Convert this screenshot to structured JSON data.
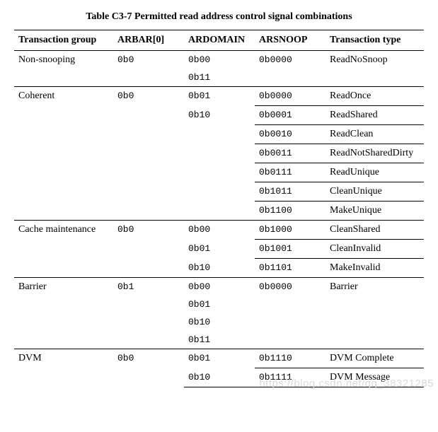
{
  "caption": "Table C3-7 Permitted read address control signal combinations",
  "columns": [
    "Transaction group",
    "ARBAR[0]",
    "ARDOMAIN",
    "ARSNOOP",
    "Transaction type"
  ],
  "groups": [
    {
      "name": "Non-snooping",
      "arbar": "0b0",
      "ardomain": [
        "0b00",
        "0b11"
      ],
      "rows": [
        {
          "arsnoop": "0b0000",
          "type": "ReadNoSnoop"
        }
      ]
    },
    {
      "name": "Coherent",
      "arbar": "0b0",
      "ardomain": [
        "0b01",
        "0b10"
      ],
      "rows": [
        {
          "arsnoop": "0b0000",
          "type": "ReadOnce"
        },
        {
          "arsnoop": "0b0001",
          "type": "ReadShared"
        },
        {
          "arsnoop": "0b0010",
          "type": "ReadClean"
        },
        {
          "arsnoop": "0b0011",
          "type": "ReadNotSharedDirty"
        },
        {
          "arsnoop": "0b0111",
          "type": "ReadUnique"
        },
        {
          "arsnoop": "0b1011",
          "type": "CleanUnique"
        },
        {
          "arsnoop": "0b1100",
          "type": "MakeUnique"
        }
      ]
    },
    {
      "name": "Cache maintenance",
      "arbar": "0b0",
      "ardomain": [
        "0b00",
        "0b01",
        "0b10"
      ],
      "rows": [
        {
          "arsnoop": "0b1000",
          "type": "CleanShared"
        },
        {
          "arsnoop": "0b1001",
          "type": "CleanInvalid"
        },
        {
          "arsnoop": "0b1101",
          "type": "MakeInvalid"
        }
      ]
    },
    {
      "name": "Barrier",
      "arbar": "0b1",
      "ardomain": [
        "0b00",
        "0b01",
        "0b10",
        "0b11"
      ],
      "rows": [
        {
          "arsnoop": "0b0000",
          "type": "Barrier"
        }
      ]
    },
    {
      "name": "DVM",
      "arbar": "0b0",
      "ardomain": [
        "0b01",
        "0b10"
      ],
      "rows": [
        {
          "arsnoop": "0b1110",
          "type": "DVM Complete"
        },
        {
          "arsnoop": "0b1111",
          "type": "DVM Message"
        }
      ]
    }
  ],
  "watermark": "https://blog.csdn.net/qq_38321285"
}
